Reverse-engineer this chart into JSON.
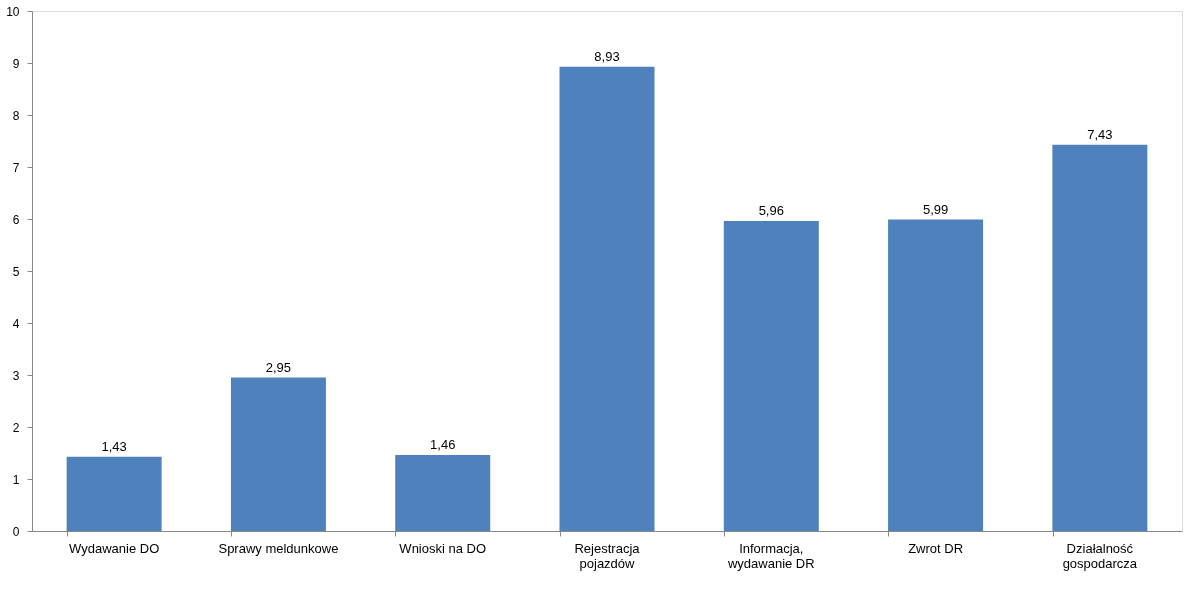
{
  "chart_data": {
    "type": "bar",
    "categories": [
      "Wydawanie DO",
      "Sprawy meldunkowe",
      "Wnioski na DO",
      "Rejestracja pojazdów",
      "Informacja, wydawanie DR",
      "Zwrot DR",
      "Działalność gospodarcza"
    ],
    "values": [
      1.43,
      2.95,
      1.46,
      8.93,
      5.96,
      5.99,
      7.43
    ],
    "value_labels": [
      "1,43",
      "2,95",
      "1,46",
      "8,93",
      "5,96",
      "5,99",
      "7,43"
    ],
    "color": "#4f81bd",
    "ylim": [
      0,
      10
    ],
    "yticks": [
      0,
      1,
      2,
      3,
      4,
      5,
      6,
      7,
      8,
      9,
      10
    ],
    "grid": false
  }
}
